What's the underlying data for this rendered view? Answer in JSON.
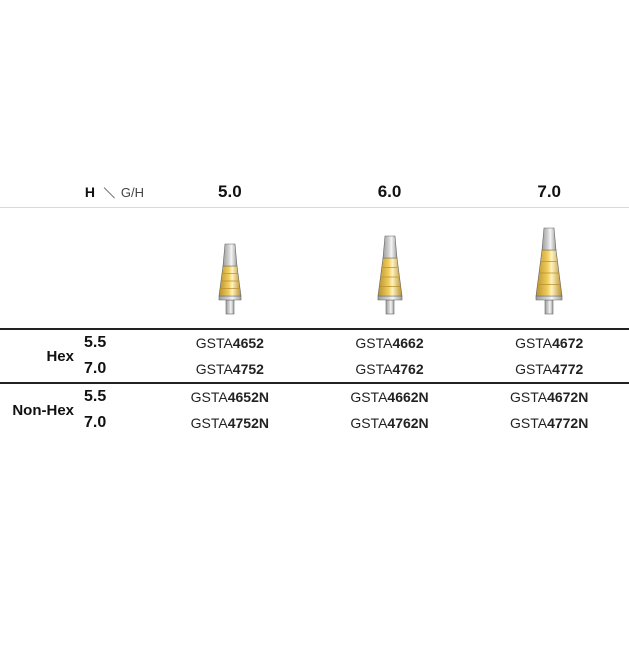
{
  "header": {
    "h_label": "H",
    "gh_label": "G/H",
    "columns": [
      "5.0",
      "6.0",
      "7.0"
    ]
  },
  "abutments": [
    {
      "gold_h": 30,
      "top_w": 14,
      "bot_w": 22
    },
    {
      "gold_h": 38,
      "top_w": 14,
      "bot_w": 24
    },
    {
      "gold_h": 46,
      "top_w": 14,
      "bot_w": 26
    }
  ],
  "colors": {
    "silver_light": "#d0d0d0",
    "silver_dark": "#9e9e9e",
    "gold_light": "#f2cf5e",
    "gold_dark": "#b8902e",
    "outline": "#666666"
  },
  "sections": [
    {
      "label": "Hex",
      "rows": [
        {
          "h": "5.5",
          "cells": [
            {
              "pre": "GSTA",
              "bold": "4652"
            },
            {
              "pre": "GSTA",
              "bold": "4662"
            },
            {
              "pre": "GSTA",
              "bold": "4672"
            }
          ]
        },
        {
          "h": "7.0",
          "cells": [
            {
              "pre": "GSTA",
              "bold": "4752"
            },
            {
              "pre": "GSTA",
              "bold": "4762"
            },
            {
              "pre": "GSTA",
              "bold": "4772"
            }
          ]
        }
      ]
    },
    {
      "label": "Non-Hex",
      "rows": [
        {
          "h": "5.5",
          "cells": [
            {
              "pre": "GSTA",
              "bold": "4652N"
            },
            {
              "pre": "GSTA",
              "bold": "4662N"
            },
            {
              "pre": "GSTA",
              "bold": "4672N"
            }
          ]
        },
        {
          "h": "7.0",
          "cells": [
            {
              "pre": "GSTA",
              "bold": "4752N"
            },
            {
              "pre": "GSTA",
              "bold": "4762N"
            },
            {
              "pre": "GSTA",
              "bold": "4772N"
            }
          ]
        }
      ]
    }
  ]
}
